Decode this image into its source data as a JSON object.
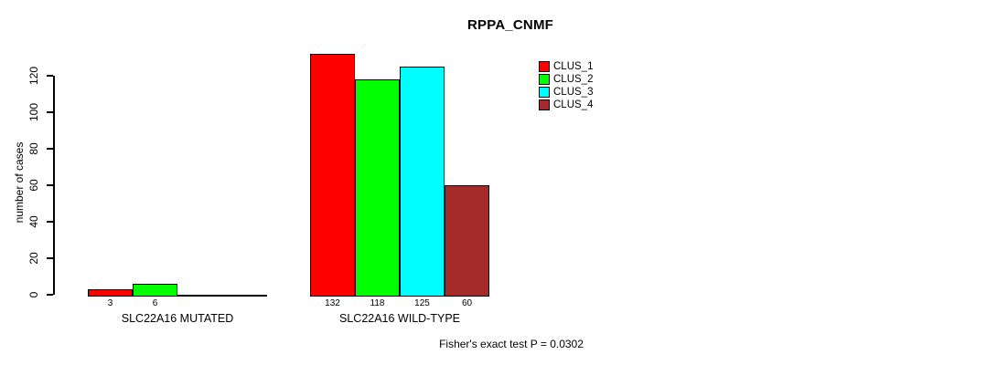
{
  "title": "RPPA_CNMF",
  "footer": "Fisher's exact test P = 0.0302",
  "y_axis": {
    "label": "number of cases",
    "tick_labels": [
      "0",
      "20",
      "40",
      "60",
      "80",
      "100",
      "120"
    ]
  },
  "chart_data": {
    "type": "bar",
    "title": "RPPA_CNMF",
    "xlabel": "",
    "ylabel": "number of cases",
    "ylim": [
      0,
      132
    ],
    "yticks": [
      0,
      20,
      40,
      60,
      80,
      100,
      120
    ],
    "grid": false,
    "legend_position": "top-right",
    "categories": [
      "SLC22A16 MUTATED",
      "SLC22A16 WILD-TYPE"
    ],
    "series": [
      {
        "name": "CLUS_1",
        "color": "#ff0000",
        "values": [
          3,
          132
        ]
      },
      {
        "name": "CLUS_2",
        "color": "#00ff00",
        "values": [
          6,
          118
        ]
      },
      {
        "name": "CLUS_3",
        "color": "#00ffff",
        "values": [
          null,
          125
        ]
      },
      {
        "name": "CLUS_4",
        "color": "#a52a2a",
        "values": [
          null,
          60
        ]
      }
    ],
    "bar_labels": [
      [
        "3",
        "6",
        null,
        null
      ],
      [
        "132",
        "118",
        "125",
        "60"
      ]
    ],
    "annotation": "Fisher's exact test P = 0.0302",
    "colors": {
      "axis": "#000000",
      "background": "#ffffff",
      "text": "#000000"
    }
  }
}
